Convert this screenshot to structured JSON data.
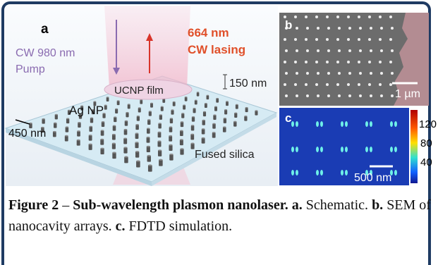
{
  "panel_a": {
    "label": "a",
    "pump": [
      "CW 980 nm",
      "Pump"
    ],
    "lasing": [
      "664 nm",
      "CW lasing"
    ],
    "film": "UCNP film",
    "thickness": "150 nm",
    "particle": "Ag NP",
    "period": "450 nm",
    "substrate": "Fused silica"
  },
  "panel_b": {
    "label": "b",
    "scale_bar": "1 µm"
  },
  "panel_c": {
    "label": "c",
    "scale_bar": "500 nm",
    "colorbar_ticks": [
      "120",
      "80",
      "40"
    ]
  },
  "caption": {
    "figure": "Figure 2",
    "dash": "–",
    "title": "Sub-wavelength plasmon nanolaser.",
    "parts": [
      {
        "label": "a.",
        "text": "Schematic."
      },
      {
        "label": "b.",
        "text": "SEM of nanocavity arrays."
      },
      {
        "label": "c.",
        "text": "FDTD simulation."
      }
    ]
  }
}
